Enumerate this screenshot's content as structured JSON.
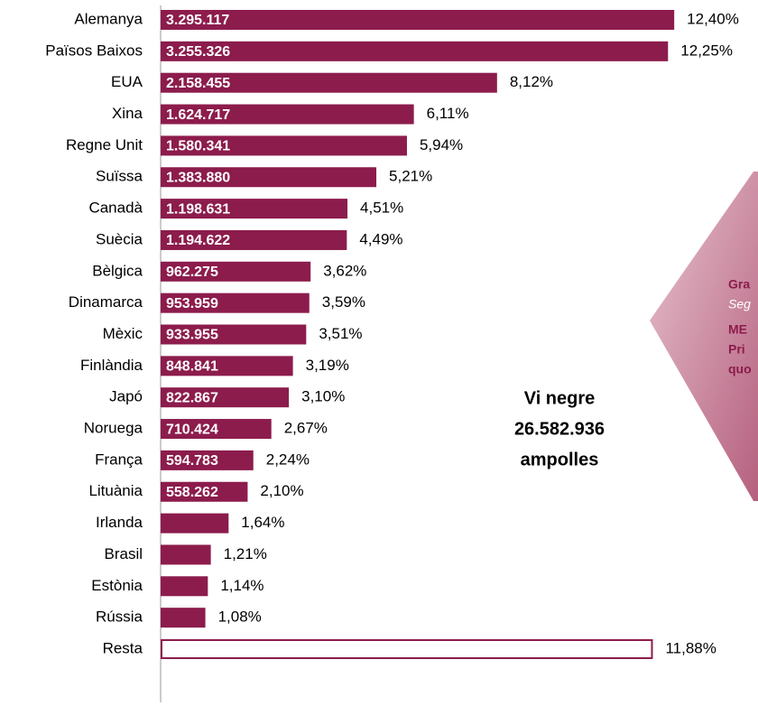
{
  "chart_data": {
    "type": "bar",
    "orientation": "horizontal",
    "categories": [
      "Alemanya",
      "Països Baixos",
      "EUA",
      "Xina",
      "Regne Unit",
      "Suïssa",
      "Canadà",
      "Suècia",
      "Bèlgica",
      "Dinamarca",
      "Mèxic",
      "Finlàndia",
      "Japó",
      "Noruega",
      "França",
      "Lituània",
      "Irlanda",
      "Brasil",
      "Estònia",
      "Rússia",
      "Resta"
    ],
    "values": [
      3295117,
      3255326,
      2158455,
      1624717,
      1580341,
      1383880,
      1198631,
      1194622,
      962275,
      953959,
      933955,
      848841,
      822867,
      710424,
      594783,
      558262,
      436000,
      322000,
      303000,
      287000,
      3158000
    ],
    "value_labels": [
      "3.295.117",
      "3.255.326",
      "2.158.455",
      "1.624.717",
      "1.580.341",
      "1.383.880",
      "1.198.631",
      "1.194.622",
      "962.275",
      "953.959",
      "933.955",
      "848.841",
      "822.867",
      "710.424",
      "594.783",
      "558.262",
      null,
      null,
      null,
      null,
      null
    ],
    "shares": [
      12.4,
      12.25,
      8.12,
      6.11,
      5.94,
      5.21,
      4.51,
      4.49,
      3.62,
      3.59,
      3.51,
      3.19,
      3.1,
      2.67,
      2.24,
      2.1,
      1.64,
      1.21,
      1.14,
      1.08,
      11.88
    ],
    "share_labels": [
      "12,40%",
      "12,25%",
      "8,12%",
      "6,11%",
      "5,94%",
      "5,21%",
      "4,51%",
      "4,49%",
      "3,62%",
      "3,59%",
      "3,51%",
      "3,19%",
      "3,10%",
      "2,67%",
      "2,24%",
      "2,10%",
      "1,64%",
      "1,21%",
      "1,14%",
      "1,08%",
      "11,88%"
    ],
    "color": "#8c1c4c",
    "outlined": [
      "Resta"
    ],
    "xlim": [
      0,
      3300000
    ],
    "annotation": [
      "Vi negre",
      "26.582.936",
      "ampolles"
    ]
  },
  "callout": {
    "lines": [
      "Gra",
      "Seg",
      "ME",
      "Pri",
      "quo"
    ]
  }
}
